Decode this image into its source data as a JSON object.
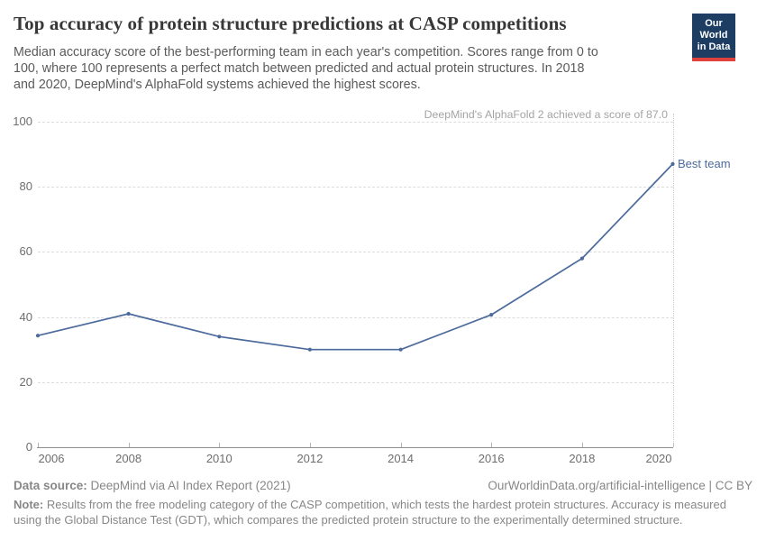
{
  "header": {
    "title": "Top accuracy of protein structure predictions at CASP competitions",
    "subtitle": "Median accuracy score of the best-performing team in each year's competition. Scores range from 0 to 100, where 100 represents a perfect match between predicted and actual protein structures. In 2018 and 2020, DeepMind's AlphaFold systems achieved the highest scores.",
    "logo": {
      "line1": "Our World",
      "line2": "in Data",
      "bg_color": "#1d3d63",
      "stripe_color": "#e0413d"
    }
  },
  "chart_data": {
    "type": "line",
    "title": "Top accuracy of protein structure predictions at CASP competitions",
    "x": [
      2006,
      2008,
      2010,
      2012,
      2014,
      2016,
      2018,
      2020
    ],
    "series": [
      {
        "name": "Best team",
        "values": [
          34.3,
          41.0,
          34.0,
          30.0,
          30.0,
          40.7,
          58.0,
          87.0
        ],
        "color": "#4c6a9c"
      }
    ],
    "xlabel": "",
    "ylabel": "",
    "ylim": [
      0,
      100
    ],
    "yticks": [
      0,
      20,
      40,
      60,
      80,
      100
    ],
    "xtick_labels": [
      "2006",
      "2008",
      "2010",
      "2012",
      "2014",
      "2016",
      "2018",
      "2020"
    ],
    "grid": "horizontal-dashed",
    "legend_position": "end-of-line",
    "annotation": "DeepMind's AlphaFold 2 achieved a score of 87.0",
    "series_end_label": "Best team",
    "line_color": "#4c6a9c"
  },
  "footer": {
    "datasource_label": "Data source:",
    "datasource": "DeepMind via AI Index Report (2021)",
    "citation": "OurWorldinData.org/artificial-intelligence | CC BY",
    "note_label": "Note:",
    "note": "Results from the free modeling category of the CASP competition, which tests the hardest protein structures. Accuracy is measured using the Global Distance Test (GDT), which compares the predicted protein structure to the experimentally determined structure."
  }
}
